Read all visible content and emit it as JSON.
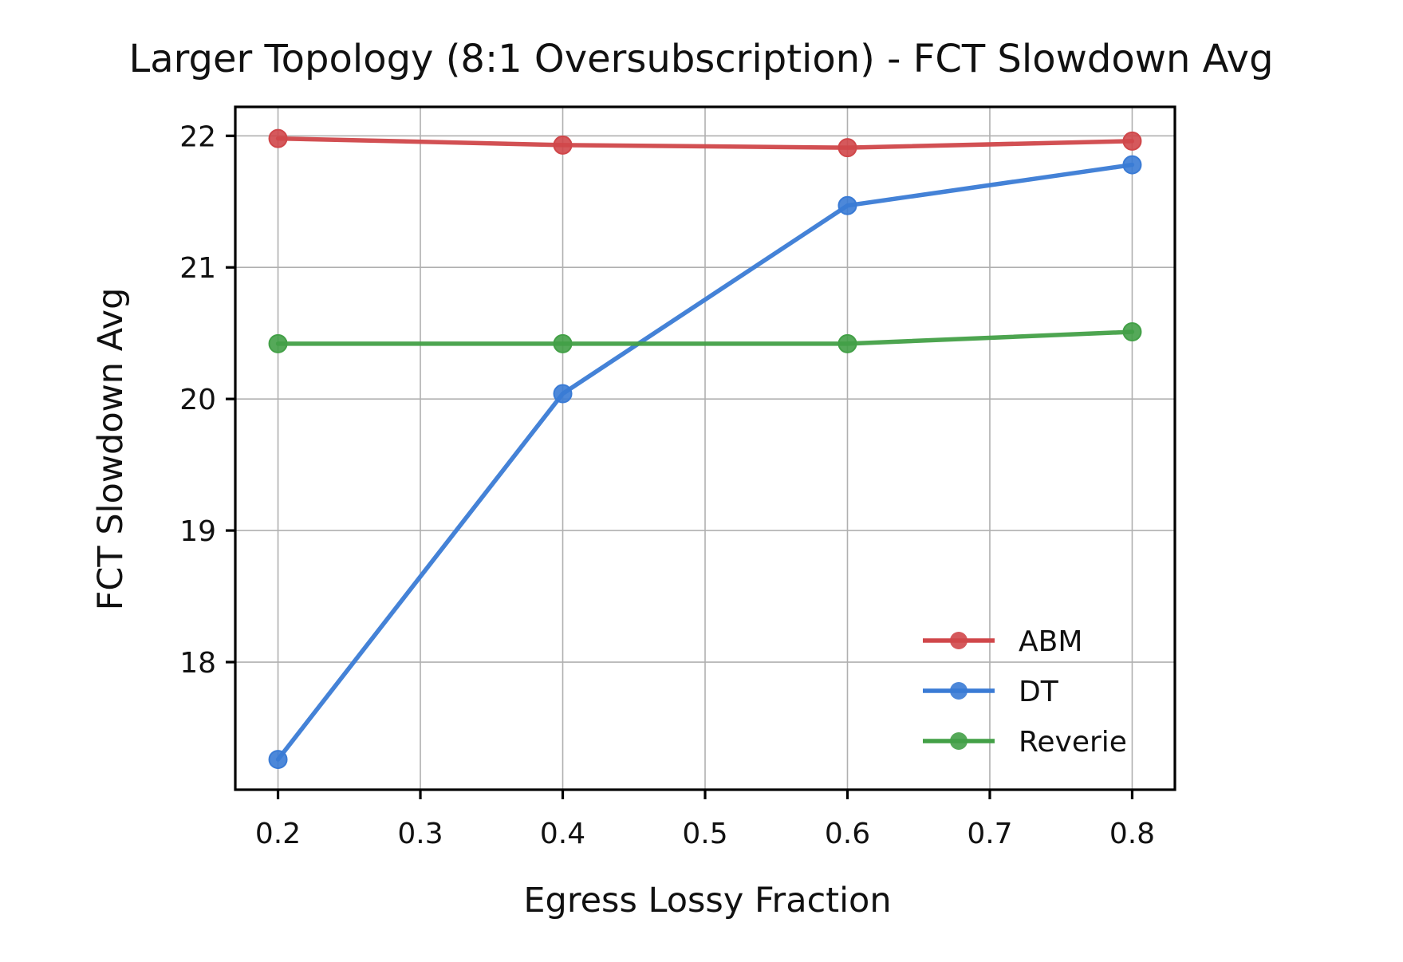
{
  "chart_data": {
    "type": "line",
    "title": "Larger Topology (8:1 Oversubscription) - FCT Slowdown Avg",
    "xlabel": "Egress Lossy Fraction",
    "ylabel": "FCT Slowdown Avg",
    "x": [
      0.2,
      0.4,
      0.6,
      0.8
    ],
    "xlim": [
      0.17,
      0.83
    ],
    "ylim": [
      17.03,
      22.22
    ],
    "xticks": [
      0.2,
      0.3,
      0.4,
      0.5,
      0.6,
      0.7,
      0.8
    ],
    "xtick_labels": [
      "0.2",
      "0.3",
      "0.4",
      "0.5",
      "0.6",
      "0.7",
      "0.8"
    ],
    "yticks": [
      18,
      19,
      20,
      21,
      22
    ],
    "ytick_labels": [
      "18",
      "19",
      "20",
      "21",
      "22"
    ],
    "grid": true,
    "legend_position": "lower-right",
    "series": [
      {
        "name": "ABM",
        "color": "#d0474a",
        "values": [
          21.98,
          21.93,
          21.91,
          21.96
        ]
      },
      {
        "name": "DT",
        "color": "#3a7bd5",
        "values": [
          17.26,
          20.04,
          21.47,
          21.78
        ]
      },
      {
        "name": "Reverie",
        "color": "#43a047",
        "values": [
          20.42,
          20.42,
          20.42,
          20.51
        ]
      }
    ]
  }
}
